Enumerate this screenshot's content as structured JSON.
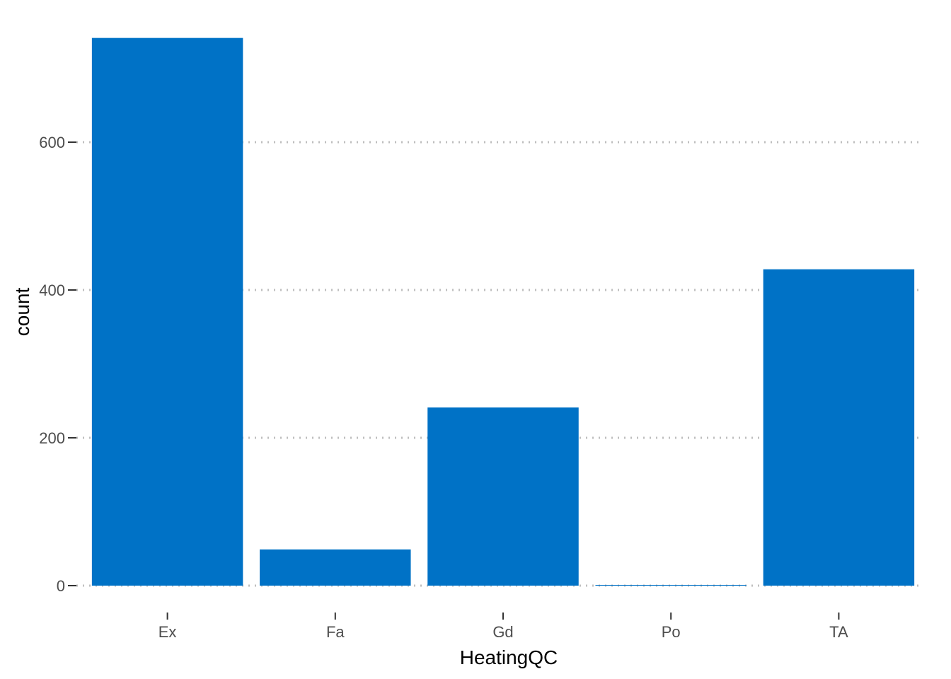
{
  "chart_data": {
    "type": "bar",
    "categories": [
      "Ex",
      "Fa",
      "Gd",
      "Po",
      "TA"
    ],
    "values": [
      741,
      49,
      241,
      1,
      428
    ],
    "xlabel": "HeatingQC",
    "ylabel": "count",
    "ylim": [
      0,
      741
    ],
    "yticks": [
      0,
      200,
      400,
      600
    ],
    "grid": "horizontal-dotted",
    "legend": "none",
    "colors": {
      "bar": "#0072C6",
      "grid": "#BEBEBE",
      "tick_label": "#4D4D4D",
      "axis_title": "#000000"
    }
  }
}
